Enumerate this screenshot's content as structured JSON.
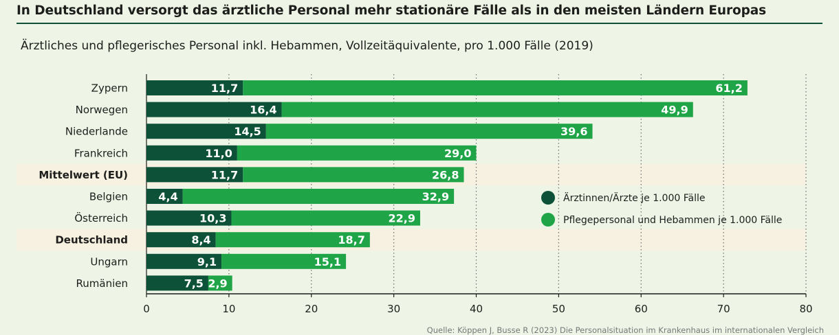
{
  "title": "In Deutschland versorgt das ärztliche Personal mehr stationäre Fälle als in den meisten Ländern Europas",
  "subtitle": "Ärztliches und pflegerisches Personal inkl. Hebammen, Vollzeitäquivalente, pro 1.000 Fälle (2019)",
  "source": "Quelle: Köppen J, Busse R (2023) Die Personalsituation im Krankenhaus im internationalen Vergleich",
  "colors": {
    "doctors": "#0d5238",
    "nurses": "#1fa547",
    "highlight_row": "#f6f1e1",
    "grid": "#6a6a6a"
  },
  "chart_data": {
    "type": "bar",
    "orientation": "horizontal",
    "stacked": true,
    "categories": [
      "Zypern",
      "Norwegen",
      "Niederlande",
      "Frankreich",
      "Mittelwert (EU)",
      "Belgien",
      "Österreich",
      "Deutschland",
      "Ungarn",
      "Rumänien"
    ],
    "highlighted": [
      "Mittelwert (EU)",
      "Deutschland"
    ],
    "series": [
      {
        "name": "Ärztinnen/Ärzte je 1.000 Fälle",
        "color": "#0d5238",
        "values": [
          11.7,
          16.4,
          14.5,
          11.0,
          11.7,
          4.4,
          10.3,
          8.4,
          9.1,
          7.5
        ],
        "labels": [
          "11,7",
          "16,4",
          "14,5",
          "11,0",
          "11,7",
          "4,4",
          "10,3",
          "8,4",
          "9,1",
          "7,5"
        ]
      },
      {
        "name": "Pflegepersonal und Hebammen je 1.000 Fälle",
        "color": "#1fa547",
        "values": [
          61.2,
          49.9,
          39.6,
          29.0,
          26.8,
          32.9,
          22.9,
          18.7,
          15.1,
          2.9
        ],
        "labels": [
          "61,2",
          "49,9",
          "39,6",
          "29,0",
          "26,8",
          "32,9",
          "22,9",
          "18,7",
          "15,1",
          "2,9"
        ]
      }
    ],
    "xlim": [
      0,
      80
    ],
    "xticks": [
      0,
      10,
      20,
      30,
      40,
      50,
      60,
      70,
      80
    ],
    "grid": "vertical dotted",
    "legend_position": "right"
  }
}
